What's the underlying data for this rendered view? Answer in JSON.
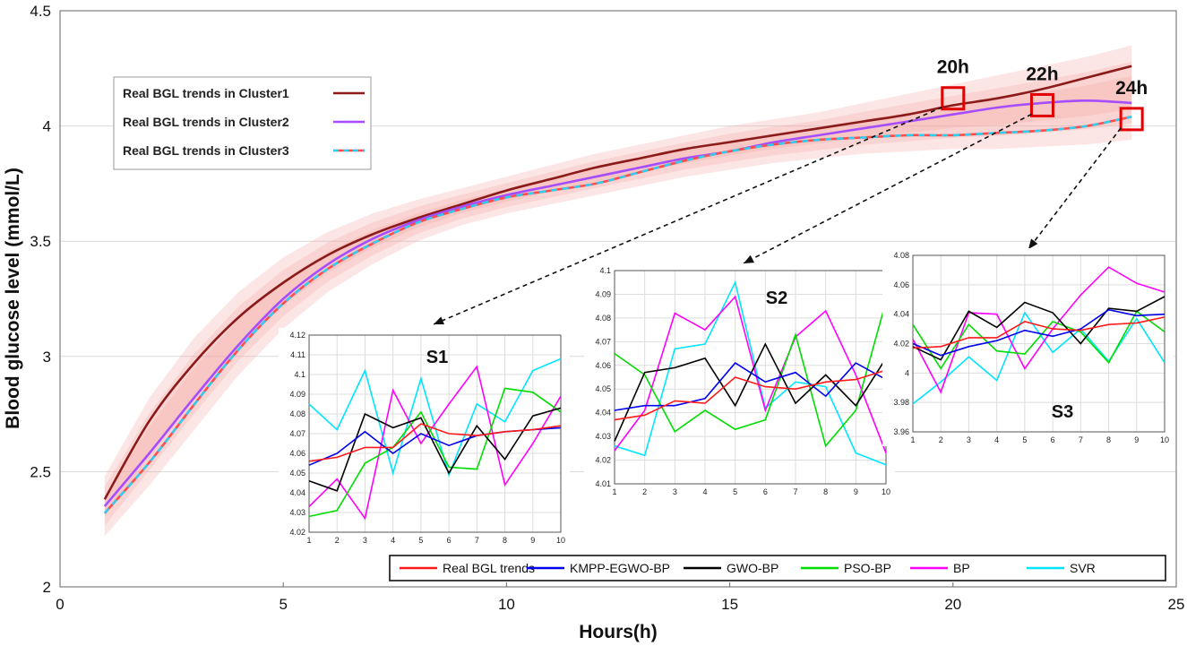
{
  "chart_data": {
    "type": "line",
    "xlabel": "Hours(h)",
    "ylabel": "Blood glucose level (mmol/L)",
    "xlim": [
      0,
      25
    ],
    "ylim": [
      2,
      4.5
    ],
    "xticks": [
      "0",
      "5",
      "10",
      "15",
      "20",
      "25"
    ],
    "yticks": [
      "2",
      "2.5",
      "3",
      "3.5",
      "4",
      "4.5"
    ],
    "grid": true,
    "main_series": [
      {
        "name": "Real BGL trends in Cluster1",
        "color": "#8b1a1a",
        "style": "solid",
        "x": [
          1,
          2,
          3,
          4,
          5,
          6,
          7,
          8,
          9,
          10,
          11,
          12,
          13,
          14,
          15,
          16,
          17,
          18,
          19,
          20,
          21,
          22,
          23,
          24
        ],
        "y": [
          2.38,
          2.72,
          2.97,
          3.17,
          3.32,
          3.44,
          3.53,
          3.6,
          3.66,
          3.72,
          3.77,
          3.82,
          3.86,
          3.9,
          3.93,
          3.96,
          3.99,
          4.02,
          4.05,
          4.09,
          4.12,
          4.16,
          4.21,
          4.26
        ]
      },
      {
        "name": "Real BGL trends in Cluster2",
        "color": "#a64dff",
        "style": "solid",
        "x": [
          1,
          2,
          3,
          4,
          5,
          6,
          7,
          8,
          9,
          10,
          11,
          12,
          13,
          14,
          15,
          16,
          17,
          18,
          19,
          20,
          21,
          22,
          23,
          24
        ],
        "y": [
          2.35,
          2.58,
          2.82,
          3.05,
          3.25,
          3.4,
          3.51,
          3.59,
          3.65,
          3.7,
          3.74,
          3.78,
          3.82,
          3.86,
          3.89,
          3.93,
          3.96,
          3.99,
          4.02,
          4.05,
          4.08,
          4.1,
          4.11,
          4.1
        ]
      },
      {
        "name": "Real BGL trends in Cluster3",
        "color": "#ff4d4d",
        "dash_color": "#33ccee",
        "style": "dashed",
        "x": [
          1,
          2,
          3,
          4,
          5,
          6,
          7,
          8,
          9,
          10,
          11,
          12,
          13,
          14,
          15,
          16,
          17,
          18,
          19,
          20,
          21,
          22,
          23,
          24
        ],
        "y": [
          2.32,
          2.54,
          2.79,
          3.03,
          3.23,
          3.38,
          3.49,
          3.58,
          3.64,
          3.69,
          3.72,
          3.75,
          3.8,
          3.85,
          3.89,
          3.92,
          3.94,
          3.95,
          3.96,
          3.96,
          3.97,
          3.98,
          4.0,
          4.04
        ]
      }
    ],
    "confidence_band": {
      "color": "#f4a6a0",
      "x": [
        1,
        2,
        3,
        4,
        5,
        6,
        7,
        8,
        9,
        10,
        11,
        12,
        13,
        14,
        15,
        16,
        17,
        18,
        19,
        20,
        21,
        22,
        23,
        24
      ],
      "lower": [
        2.22,
        2.44,
        2.68,
        2.92,
        3.12,
        3.28,
        3.4,
        3.5,
        3.57,
        3.62,
        3.66,
        3.7,
        3.74,
        3.78,
        3.81,
        3.84,
        3.86,
        3.88,
        3.89,
        3.9,
        3.9,
        3.91,
        3.92,
        3.94
      ],
      "upper": [
        2.48,
        2.82,
        3.08,
        3.28,
        3.43,
        3.54,
        3.62,
        3.68,
        3.73,
        3.78,
        3.83,
        3.88,
        3.92,
        3.96,
        4.0,
        4.03,
        4.06,
        4.1,
        4.14,
        4.18,
        4.22,
        4.26,
        4.3,
        4.35
      ]
    },
    "markers": [
      {
        "label": "20h",
        "x": 20,
        "y": 4.12,
        "inset": "S1"
      },
      {
        "label": "22h",
        "x": 22,
        "y": 4.09,
        "inset": "S2"
      },
      {
        "label": "24h",
        "x": 24,
        "y": 4.03,
        "inset": "S3"
      }
    ],
    "insets": [
      {
        "title": "S1",
        "xlim": [
          1,
          10
        ],
        "ylim": [
          4.02,
          4.12
        ],
        "xticks": [
          "1",
          "2",
          "3",
          "4",
          "5",
          "6",
          "7",
          "8",
          "9",
          "10"
        ],
        "yticks": [
          "4.02",
          "4.03",
          "4.04",
          "4.05",
          "4.06",
          "4.07",
          "4.08",
          "4.09",
          "4.1",
          "4.11",
          "4.12"
        ],
        "series": [
          {
            "name": "Real BGL trends",
            "values": [
              4.056,
              4.058,
              4.063,
              4.063,
              4.075,
              4.07,
              4.069,
              4.071,
              4.072,
              4.074
            ]
          },
          {
            "name": "KMPP-EGWO-BP",
            "values": [
              4.054,
              4.06,
              4.071,
              4.06,
              4.07,
              4.064,
              4.069,
              4.071,
              4.072,
              4.073
            ]
          },
          {
            "name": "GWO-BP",
            "values": [
              4.046,
              4.041,
              4.08,
              4.073,
              4.078,
              4.05,
              4.074,
              4.057,
              4.079,
              4.083
            ]
          },
          {
            "name": "PSO-BP",
            "values": [
              4.028,
              4.031,
              4.055,
              4.063,
              4.081,
              4.053,
              4.052,
              4.093,
              4.091,
              4.081
            ]
          },
          {
            "name": "BP",
            "values": [
              4.033,
              4.047,
              4.027,
              4.092,
              4.065,
              4.085,
              4.104,
              4.044,
              4.065,
              4.089
            ]
          },
          {
            "name": "SVR",
            "values": [
              4.085,
              4.072,
              4.102,
              4.05,
              4.098,
              4.049,
              4.085,
              4.076,
              4.102,
              4.108
            ]
          }
        ]
      },
      {
        "title": "S2",
        "xlim": [
          1,
          10
        ],
        "ylim": [
          4.01,
          4.1
        ],
        "xticks": [
          "1",
          "2",
          "3",
          "4",
          "5",
          "6",
          "7",
          "8",
          "9",
          "10"
        ],
        "yticks": [
          "4.01",
          "4.02",
          "4.03",
          "4.04",
          "4.05",
          "4.06",
          "4.07",
          "4.08",
          "4.09",
          "4.1"
        ],
        "series": [
          {
            "name": "Real BGL trends",
            "values": [
              4.037,
              4.039,
              4.045,
              4.044,
              4.055,
              4.051,
              4.05,
              4.053,
              4.054,
              4.058
            ]
          },
          {
            "name": "KMPP-EGWO-BP",
            "values": [
              4.041,
              4.043,
              4.043,
              4.046,
              4.061,
              4.053,
              4.057,
              4.047,
              4.061,
              4.054
            ]
          },
          {
            "name": "GWO-BP",
            "values": [
              4.028,
              4.057,
              4.059,
              4.063,
              4.043,
              4.069,
              4.044,
              4.056,
              4.043,
              4.063
            ]
          },
          {
            "name": "PSO-BP",
            "values": [
              4.065,
              4.056,
              4.032,
              4.041,
              4.033,
              4.037,
              4.073,
              4.026,
              4.041,
              4.087
            ]
          },
          {
            "name": "BP",
            "values": [
              4.024,
              4.041,
              4.082,
              4.075,
              4.089,
              4.041,
              4.072,
              4.083,
              4.056,
              4.023
            ]
          },
          {
            "name": "SVR",
            "values": [
              4.026,
              4.022,
              4.067,
              4.069,
              4.095,
              4.042,
              4.053,
              4.051,
              4.023,
              4.018
            ]
          }
        ]
      },
      {
        "title": "S3",
        "xlim": [
          1,
          10
        ],
        "ylim": [
          3.96,
          4.08
        ],
        "xticks": [
          "1",
          "2",
          "3",
          "4",
          "5",
          "6",
          "7",
          "8",
          "9",
          "10"
        ],
        "yticks": [
          "3.96",
          "3.98",
          "4",
          "4.02",
          "4.04",
          "4.06",
          "4.08"
        ],
        "series": [
          {
            "name": "Real BGL trends",
            "values": [
              4.017,
              4.018,
              4.024,
              4.024,
              4.035,
              4.03,
              4.029,
              4.033,
              4.034,
              4.038
            ]
          },
          {
            "name": "KMPP-EGWO-BP",
            "values": [
              4.02,
              4.012,
              4.018,
              4.022,
              4.029,
              4.025,
              4.03,
              4.043,
              4.039,
              4.04
            ]
          },
          {
            "name": "GWO-BP",
            "values": [
              4.018,
              4.009,
              4.042,
              4.031,
              4.048,
              4.041,
              4.02,
              4.044,
              4.042,
              4.052
            ]
          },
          {
            "name": "PSO-BP",
            "values": [
              4.033,
              4.003,
              4.033,
              4.015,
              4.013,
              4.035,
              4.028,
              4.007,
              4.042,
              4.028
            ]
          },
          {
            "name": "BP",
            "values": [
              4.023,
              3.987,
              4.041,
              4.04,
              4.003,
              4.03,
              4.053,
              4.072,
              4.061,
              4.055
            ]
          },
          {
            "name": "SVR",
            "values": [
              3.979,
              3.994,
              4.011,
              3.995,
              4.041,
              4.014,
              4.03,
              4.008,
              4.037,
              4.007
            ]
          }
        ]
      }
    ],
    "model_legend": [
      {
        "name": "Real BGL trends",
        "color": "#ff1a1a"
      },
      {
        "name": "KMPP-EGWO-BP",
        "color": "#0000ee"
      },
      {
        "name": "GWO-BP",
        "color": "#000000"
      },
      {
        "name": "PSO-BP",
        "color": "#00dd00"
      },
      {
        "name": "BP",
        "color": "#ff00ff"
      },
      {
        "name": "SVR",
        "color": "#00e5ff"
      }
    ]
  }
}
